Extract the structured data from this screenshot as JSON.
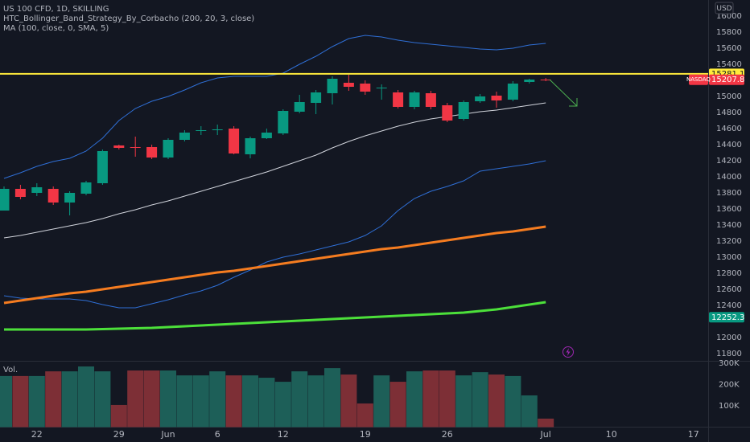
{
  "chart_data": [
    {
      "type": "candlestick",
      "title": "US 100 CFD, 1D, SKILLING",
      "indicators": [
        "HTC_Bollinger_Band_Strategy_By_Corbacho (200, 20, 3, close)",
        "MA (100, close, 0, SMA, 5)"
      ],
      "currency": "USD",
      "categories": [
        null,
        null,
        "22",
        null,
        null,
        null,
        null,
        "29",
        null,
        null,
        "Jun",
        null,
        null,
        "6",
        null,
        null,
        null,
        "12",
        null,
        null,
        null,
        null,
        "19",
        null,
        null,
        null,
        null,
        "26",
        null,
        null,
        null,
        null,
        null,
        "Jul",
        null,
        null,
        null,
        "10",
        null,
        null,
        null,
        null,
        "17"
      ],
      "open": [
        13580,
        13850,
        13800,
        13850,
        13680,
        13790,
        13920,
        14390,
        14370,
        14370,
        14240,
        14460,
        14570,
        14580,
        14600,
        14280,
        14480,
        14540,
        14810,
        14920,
        15040,
        15170,
        15160,
        15100,
        15050,
        14870,
        15040,
        14890,
        14720,
        14940,
        15010,
        14960,
        15180,
        15210,
        null,
        null,
        null,
        null,
        null,
        null,
        null,
        null,
        null
      ],
      "high": [
        13880,
        13900,
        13920,
        13880,
        13820,
        13950,
        14340,
        14400,
        14500,
        14400,
        14480,
        14580,
        14630,
        14650,
        14630,
        14500,
        14600,
        14840,
        15020,
        15080,
        15250,
        15270,
        15200,
        15150,
        15080,
        15070,
        15070,
        14920,
        14950,
        15030,
        15060,
        15190,
        15220,
        15230,
        null,
        null,
        null,
        null,
        null,
        null,
        null,
        null,
        null
      ],
      "low": [
        13580,
        13720,
        13760,
        13650,
        13520,
        13770,
        13900,
        14340,
        14250,
        14220,
        14220,
        14440,
        14520,
        14520,
        14280,
        14230,
        14470,
        14520,
        14790,
        14780,
        14900,
        15070,
        15020,
        14960,
        14850,
        14840,
        14840,
        14680,
        14700,
        14920,
        14860,
        14940,
        15160,
        15190,
        null,
        null,
        null,
        null,
        null,
        null,
        null,
        null,
        null
      ],
      "close": [
        13850,
        13750,
        13870,
        13680,
        13800,
        13930,
        14320,
        14360,
        14360,
        14240,
        14460,
        14550,
        14580,
        14590,
        14290,
        14480,
        14550,
        14820,
        14930,
        15050,
        15220,
        15120,
        15060,
        15110,
        14870,
        15050,
        14870,
        14700,
        14930,
        15000,
        14950,
        15160,
        15210,
        15207.8,
        null,
        null,
        null,
        null,
        null,
        null,
        null,
        null,
        null
      ],
      "up_color": "#089981",
      "down_color": "#f23645",
      "series": [
        {
          "color": "#2f6fd6",
          "width": 1,
          "values": [
            13980,
            14050,
            14130,
            14190,
            14230,
            14320,
            14480,
            14700,
            14850,
            14940,
            15000,
            15080,
            15170,
            15230,
            15250,
            15250,
            15250,
            15290,
            15400,
            15500,
            15620,
            15720,
            15760,
            15740,
            15700,
            15670,
            15650,
            15630,
            15610,
            15590,
            15580,
            15600,
            15640,
            15660,
            null,
            null,
            null,
            null,
            null,
            null,
            null,
            null,
            null
          ]
        },
        {
          "color": "#d1d4dc",
          "width": 1,
          "values": [
            13240,
            13270,
            13310,
            13350,
            13390,
            13430,
            13480,
            13540,
            13590,
            13650,
            13700,
            13760,
            13820,
            13880,
            13940,
            14000,
            14060,
            14130,
            14200,
            14270,
            14360,
            14440,
            14510,
            14570,
            14630,
            14680,
            14720,
            14750,
            14780,
            14810,
            14830,
            14860,
            14890,
            14920,
            null,
            null,
            null,
            null,
            null,
            null,
            null,
            null,
            null
          ]
        },
        {
          "color": "#2f6fd6",
          "width": 1,
          "values": [
            12520,
            12490,
            12480,
            12480,
            12480,
            12460,
            12410,
            12370,
            12370,
            12420,
            12470,
            12530,
            12580,
            12650,
            12750,
            12840,
            12940,
            13000,
            13040,
            13090,
            13140,
            13190,
            13270,
            13390,
            13580,
            13730,
            13820,
            13880,
            13950,
            14070,
            14100,
            14130,
            14160,
            14200,
            null,
            null,
            null,
            null,
            null,
            null,
            null,
            null,
            null
          ]
        },
        {
          "color": "#f57c20",
          "width": 3,
          "values": [
            12430,
            12460,
            12490,
            12520,
            12550,
            12570,
            12600,
            12630,
            12660,
            12690,
            12720,
            12750,
            12780,
            12810,
            12830,
            12860,
            12890,
            12920,
            12950,
            12980,
            13010,
            13040,
            13070,
            13100,
            13120,
            13150,
            13180,
            13210,
            13240,
            13270,
            13300,
            13320,
            13350,
            13380,
            null,
            null,
            null,
            null,
            null,
            null,
            null,
            null,
            null
          ]
        },
        {
          "color": "#4ce03a",
          "width": 3,
          "values": [
            12100,
            12100,
            12100,
            12100,
            12100,
            12100,
            12105,
            12110,
            12115,
            12120,
            12130,
            12140,
            12150,
            12160,
            12170,
            12180,
            12190,
            12200,
            12210,
            12220,
            12230,
            12240,
            12250,
            12260,
            12270,
            12280,
            12290,
            12300,
            12310,
            12330,
            12350,
            12380,
            12410,
            12440,
            null,
            null,
            null,
            null,
            null,
            null,
            null,
            null,
            null
          ]
        }
      ],
      "price_labels": [
        {
          "value": 15281.1,
          "color": "#ffeb3b",
          "line": true
        },
        {
          "value": 15207.8,
          "color": "#f23645",
          "tag": "NASDAQ"
        },
        {
          "value": 12252.3,
          "color": "#089981"
        }
      ],
      "ylim": [
        11700,
        16200
      ],
      "yticks": [
        16000,
        15800,
        15600,
        15400,
        15000,
        14800,
        14600,
        14400,
        14200,
        14000,
        13800,
        13600,
        13400,
        13200,
        13000,
        12800,
        12600,
        12400,
        12000,
        11800
      ],
      "grid": false
    },
    {
      "type": "bar",
      "title": "Vol.",
      "values": [
        240000,
        240000,
        240000,
        262000,
        262000,
        285000,
        262000,
        104000,
        266000,
        266000,
        266000,
        243000,
        243000,
        262000,
        243000,
        243000,
        232000,
        213000,
        262000,
        243000,
        277000,
        247000,
        111000,
        243000,
        213000,
        262000,
        266000,
        266000,
        243000,
        258000,
        247000,
        240000,
        149000,
        40000,
        null,
        null,
        null,
        null,
        null,
        null,
        null,
        null,
        null
      ],
      "up_color": "#1d5f58",
      "down_color": "#7d2f36",
      "ylim": [
        0,
        300000
      ],
      "yticks": [
        {
          "value": 300000,
          "label": "300K"
        },
        {
          "value": 200000,
          "label": "200K"
        },
        {
          "value": 100000,
          "label": "100K"
        }
      ]
    }
  ]
}
